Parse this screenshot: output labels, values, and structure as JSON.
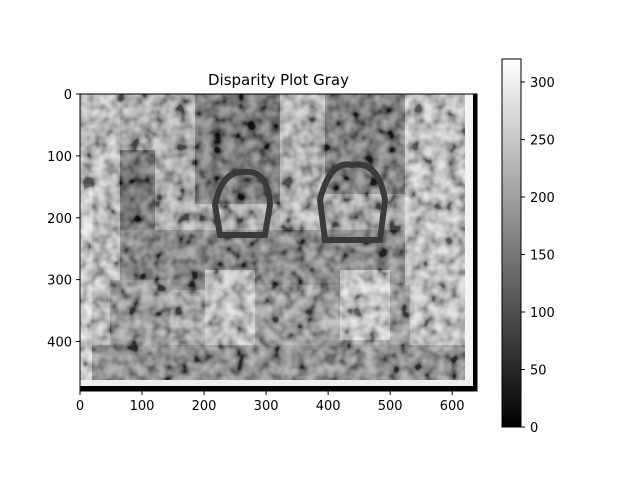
{
  "chart_data": {
    "type": "heatmap",
    "title": "Disparity Plot Gray",
    "xlabel": "",
    "ylabel": "",
    "colormap": "gray",
    "image_width": 640,
    "image_height": 480,
    "xlim": [
      0,
      640
    ],
    "ylim": [
      480,
      0
    ],
    "x_ticks": [
      0,
      100,
      200,
      300,
      400,
      500,
      600
    ],
    "y_ticks": [
      0,
      100,
      200,
      300,
      400
    ],
    "colorbar": {
      "range": [
        0,
        320
      ],
      "ticks": [
        0,
        50,
        100,
        150,
        200,
        250,
        300
      ]
    },
    "grid": false
  }
}
